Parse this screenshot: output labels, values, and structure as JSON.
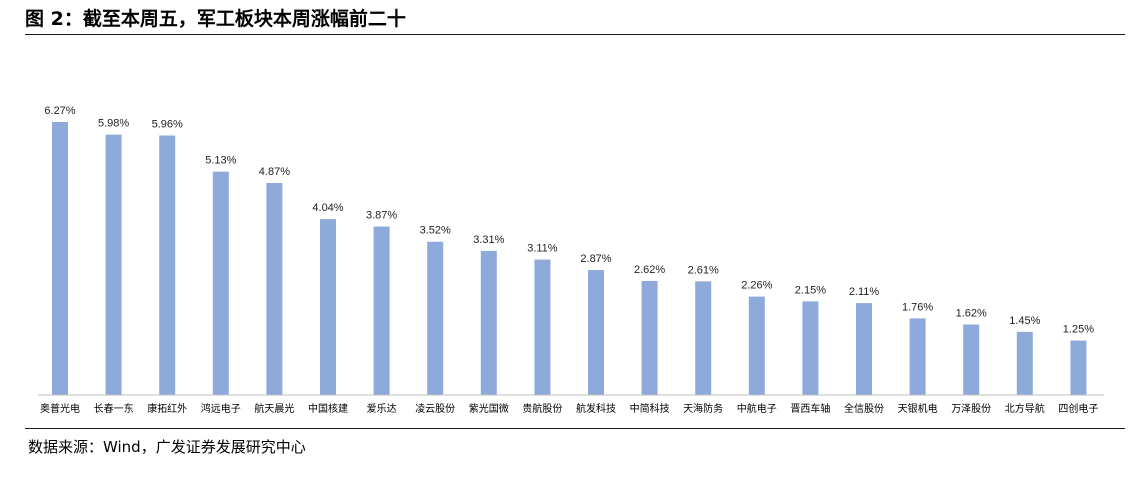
{
  "title": "图 2：截至本周五，军工板块本周涨幅前二十",
  "source": "数据来源：Wind，广发证券发展研究中心",
  "bar_color": "#8eaadb",
  "chart_data": {
    "type": "bar",
    "title": "图 2：截至本周五，军工板块本周涨幅前二十",
    "categories": [
      "奥普光电",
      "长春一东",
      "康拓红外",
      "鸿远电子",
      "航天晨光",
      "中国核建",
      "爱乐达",
      "凌云股份",
      "紫光国微",
      "贵航股份",
      "航发科技",
      "中简科技",
      "天海防务",
      "中航电子",
      "晋西车轴",
      "全信股份",
      "天银机电",
      "万泽股份",
      "北方导航",
      "四创电子"
    ],
    "values": [
      6.27,
      5.98,
      5.96,
      5.13,
      4.87,
      4.04,
      3.87,
      3.52,
      3.31,
      3.11,
      2.87,
      2.62,
      2.61,
      2.26,
      2.15,
      2.11,
      1.76,
      1.62,
      1.45,
      1.25
    ],
    "value_labels": [
      "6.27%",
      "5.98%",
      "5.96%",
      "5.13%",
      "4.87%",
      "4.04%",
      "3.87%",
      "3.52%",
      "3.31%",
      "3.11%",
      "2.87%",
      "2.62%",
      "2.61%",
      "2.26%",
      "2.15%",
      "2.11%",
      "1.76%",
      "1.62%",
      "1.45%",
      "1.25%"
    ],
    "xlabel": "",
    "ylabel": "",
    "ylim": [
      0,
      6.27
    ],
    "grid": false,
    "legend": "none"
  }
}
